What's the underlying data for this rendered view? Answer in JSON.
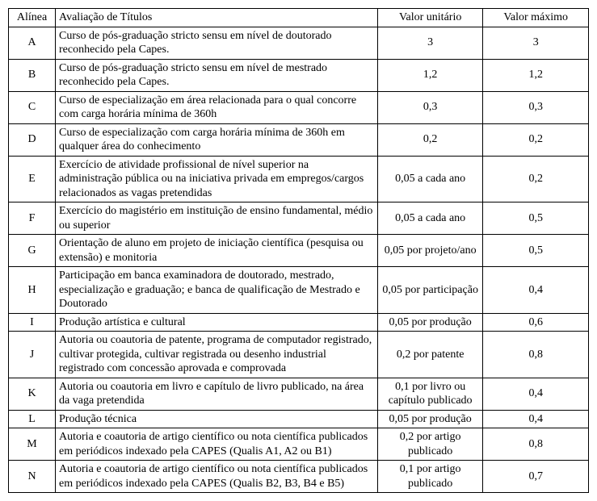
{
  "table": {
    "headers": {
      "alinea": "Alínea",
      "avaliacao": "Avaliação de Títulos",
      "unitario": "Valor unitário",
      "maximo": "Valor máximo"
    },
    "rows": [
      {
        "alinea": "A",
        "desc": "Curso de pós-graduação stricto sensu em nível de doutorado reconhecido pela Capes.",
        "unit": "3",
        "max": "3"
      },
      {
        "alinea": "B",
        "desc": "Curso de pós-graduação stricto sensu em nível de mestrado reconhecido pela Capes.",
        "unit": "1,2",
        "max": "1,2"
      },
      {
        "alinea": "C",
        "desc": "Curso de especialização em área relacionada para o qual concorre com carga horária mínima de 360h",
        "unit": "0,3",
        "max": "0,3"
      },
      {
        "alinea": "D",
        "desc": "Curso de especialização com carga horária mínima de 360h em qualquer área do conhecimento",
        "unit": "0,2",
        "max": "0,2"
      },
      {
        "alinea": "E",
        "desc": "Exercício de atividade profissional de nível superior na administração pública ou na iniciativa privada em empregos/cargos relacionados as vagas pretendidas",
        "unit": "0,05 a cada ano",
        "max": "0,2"
      },
      {
        "alinea": "F",
        "desc": "Exercício do magistério em instituição de ensino fundamental, médio ou superior",
        "unit": "0,05 a cada ano",
        "max": "0,5"
      },
      {
        "alinea": "G",
        "desc": "Orientação de aluno em projeto de iniciação científica (pesquisa ou extensão) e monitoria",
        "unit": "0,05 por projeto/ano",
        "max": "0,5"
      },
      {
        "alinea": "H",
        "desc": "Participação em banca examinadora de doutorado, mestrado, especialização e graduação; e banca de qualificação de Mestrado e Doutorado",
        "unit": "0,05 por participação",
        "max": "0,4"
      },
      {
        "alinea": "I",
        "desc": "Produção artística e cultural",
        "unit": "0,05 por produção",
        "max": "0,6"
      },
      {
        "alinea": "J",
        "desc": "Autoria ou coautoria de patente, programa de computador registrado, cultivar protegida, cultivar registrada ou desenho industrial registrado com concessão aprovada e comprovada",
        "unit": "0,2 por patente",
        "max": "0,8"
      },
      {
        "alinea": "K",
        "desc": "Autoria ou coautoria em livro e capítulo de livro publicado, na área da vaga pretendida",
        "unit": "0,1 por livro ou capítulo publicado",
        "max": "0,4"
      },
      {
        "alinea": "L",
        "desc": "Produção técnica",
        "unit": "0,05 por produção",
        "max": "0,4"
      },
      {
        "alinea": "M",
        "desc": "Autoria e coautoria de artigo científico ou nota científica publicados em periódicos indexado pela CAPES (Qualis A1, A2 ou B1)",
        "unit": "0,2 por artigo publicado",
        "max": "0,8"
      },
      {
        "alinea": "N",
        "desc": "Autoria e coautoria de artigo científico ou nota científica publicados em periódicos indexado pela CAPES (Qualis B2, B3, B4 e B5)",
        "unit": "0,1 por artigo publicado",
        "max": "0,7"
      }
    ]
  }
}
